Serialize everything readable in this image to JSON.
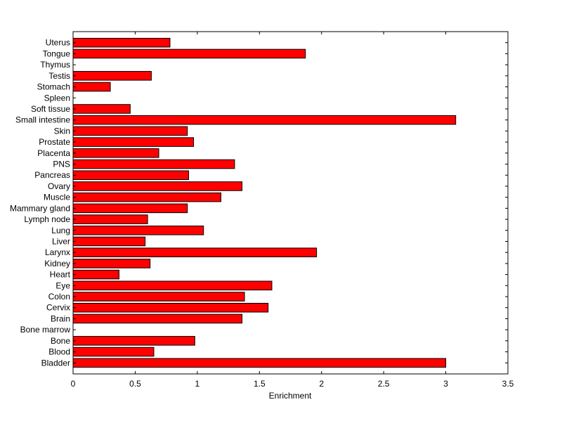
{
  "chart_data": {
    "type": "bar",
    "orientation": "horizontal",
    "categories": [
      "Bladder",
      "Blood",
      "Bone",
      "Bone marrow",
      "Brain",
      "Cervix",
      "Colon",
      "Eye",
      "Heart",
      "Kidney",
      "Larynx",
      "Liver",
      "Lung",
      "Lymph node",
      "Mammary gland",
      "Muscle",
      "Ovary",
      "Pancreas",
      "PNS",
      "Placenta",
      "Prostate",
      "Skin",
      "Small intestine",
      "Soft tissue",
      "Spleen",
      "Stomach",
      "Testis",
      "Thymus",
      "Tongue",
      "Uterus"
    ],
    "values": [
      3.0,
      0.65,
      0.98,
      0,
      1.36,
      1.57,
      1.38,
      1.6,
      0.37,
      0.62,
      1.96,
      0.58,
      1.05,
      0.6,
      0.92,
      1.19,
      1.36,
      0.93,
      1.3,
      0.69,
      0.97,
      0.92,
      3.08,
      0.46,
      0,
      0.3,
      0.63,
      0,
      1.87,
      0.78
    ],
    "xlabel": "Enrichment",
    "ylabel": "",
    "title": "",
    "xlim": [
      0,
      3.5
    ],
    "xticks": [
      0,
      0.5,
      1,
      1.5,
      2,
      2.5,
      3,
      3.5
    ],
    "xtick_labels": [
      "0",
      "0.5",
      "1",
      "1.5",
      "2",
      "2.5",
      "3",
      "3.5"
    ],
    "grid": false,
    "bar_color": "#ff0000",
    "bar_edge_color": "#000000"
  }
}
